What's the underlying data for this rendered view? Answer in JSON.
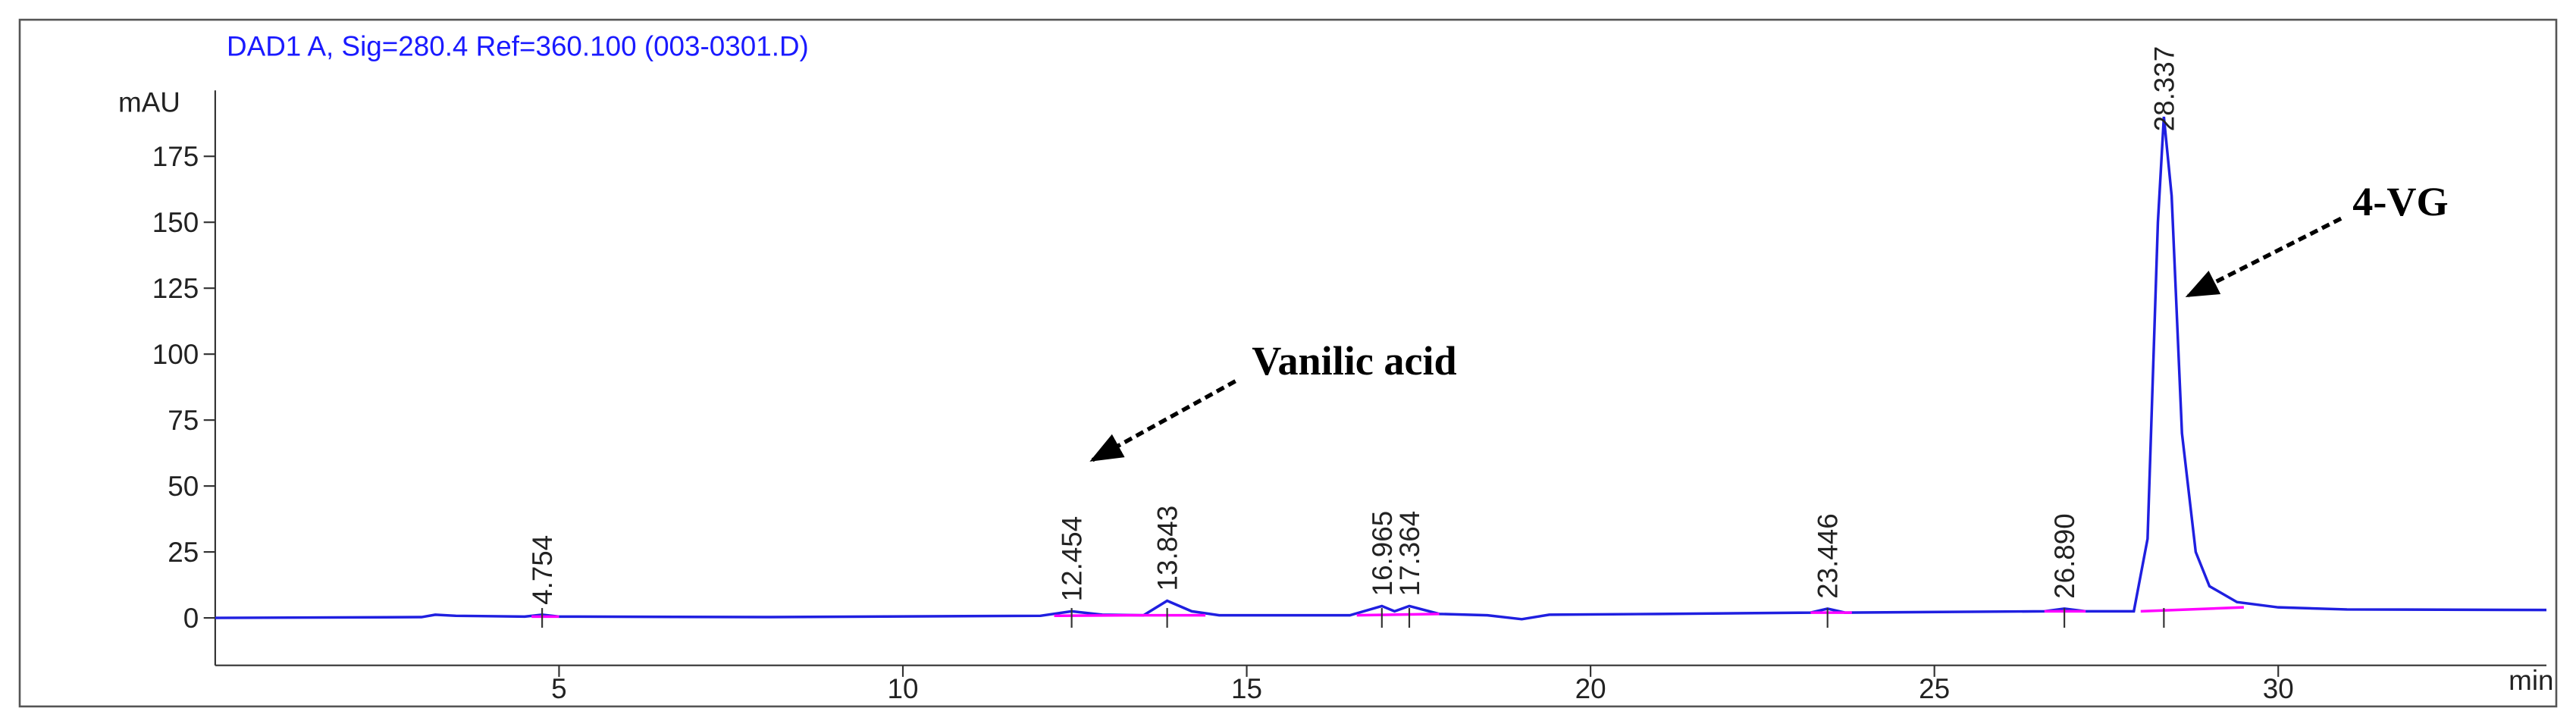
{
  "chart_data": {
    "type": "line",
    "title": "DAD1 A, Sig=280.4 Ref=360.100 (003-0301.D)",
    "y_label": "mAU",
    "x_label": "min",
    "xlim": [
      0,
      33.9
    ],
    "ylim": [
      -18,
      200
    ],
    "xticks": [
      5,
      10,
      15,
      20,
      25,
      30
    ],
    "yticks": [
      0,
      25,
      50,
      75,
      100,
      125,
      150,
      175
    ],
    "series": [
      {
        "color": "#1f1fe0",
        "x": [
          0,
          3.0,
          3.2,
          3.5,
          4.5,
          4.754,
          5.0,
          8,
          12.0,
          12.454,
          12.9,
          13.5,
          13.843,
          14.2,
          14.6,
          16.5,
          16.965,
          17.15,
          17.364,
          17.8,
          18.5,
          19.0,
          19.4,
          21,
          23.2,
          23.446,
          23.7,
          26.6,
          26.89,
          27.2,
          27.9,
          28.1,
          28.25,
          28.337,
          28.45,
          28.6,
          28.8,
          29.0,
          29.4,
          30,
          31,
          33.9
        ],
        "values": [
          0,
          0.3,
          1.2,
          0.8,
          0.5,
          1.2,
          0.5,
          0.3,
          0.8,
          2.5,
          1.2,
          1,
          6.5,
          2.5,
          1,
          1,
          4.5,
          2.5,
          4.5,
          1.5,
          1,
          -0.5,
          1.2,
          1.5,
          2,
          3.5,
          2,
          2.5,
          3.5,
          2.5,
          2.5,
          30,
          150,
          190,
          160,
          70,
          25,
          12,
          6,
          4,
          3.2,
          3
        ]
      },
      {
        "color": "#ff00ff",
        "x": [
          4.6,
          5.0,
          5.01,
          12.2,
          13.3,
          14.4,
          14.41,
          16.6,
          17.8,
          17.81,
          23.2,
          23.8,
          23.81,
          26.6,
          27.2,
          27.21,
          28.0,
          29.5
        ],
        "values": [
          0.5,
          0.5,
          null,
          0.8,
          1,
          1,
          null,
          1,
          1.5,
          null,
          2,
          2,
          null,
          2.5,
          2.5,
          null,
          2.5,
          4
        ]
      }
    ],
    "peak_labels": [
      {
        "x": 4.754,
        "text": "4.754"
      },
      {
        "x": 12.454,
        "text": "12.454"
      },
      {
        "x": 13.843,
        "text": "13.843"
      },
      {
        "x": 16.965,
        "text": "16.965"
      },
      {
        "x": 17.364,
        "text": "17.364"
      },
      {
        "x": 23.446,
        "text": "23.446"
      },
      {
        "x": 26.89,
        "text": "26.890"
      },
      {
        "x": 28.337,
        "text": "28.337"
      }
    ],
    "annotations": [
      "Vanilic acid",
      "4-VG"
    ]
  }
}
